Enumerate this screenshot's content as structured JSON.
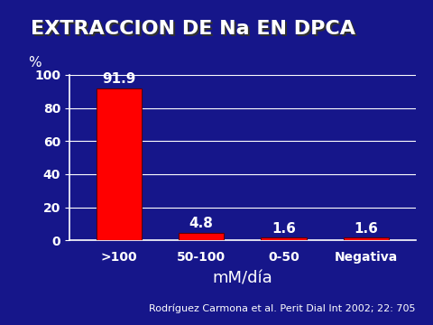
{
  "chart_data": {
    "type": "bar",
    "title": "EXTRACCION DE Na EN DPCA",
    "categories": [
      ">100",
      "50-100",
      "0-50",
      "Negativa"
    ],
    "values": [
      91.9,
      4.8,
      1.6,
      1.6
    ],
    "color": "#ff0000",
    "x_label": "mM/día",
    "y_label": "%",
    "annotations": [
      "Rodríguez Carmona et al. Perit Dial Int 2002; 22: 705"
    ],
    "ylim": [
      0,
      100
    ],
    "yticks": [
      0,
      20,
      40,
      60,
      80,
      100
    ],
    "grid": true,
    "data_labels": true
  }
}
